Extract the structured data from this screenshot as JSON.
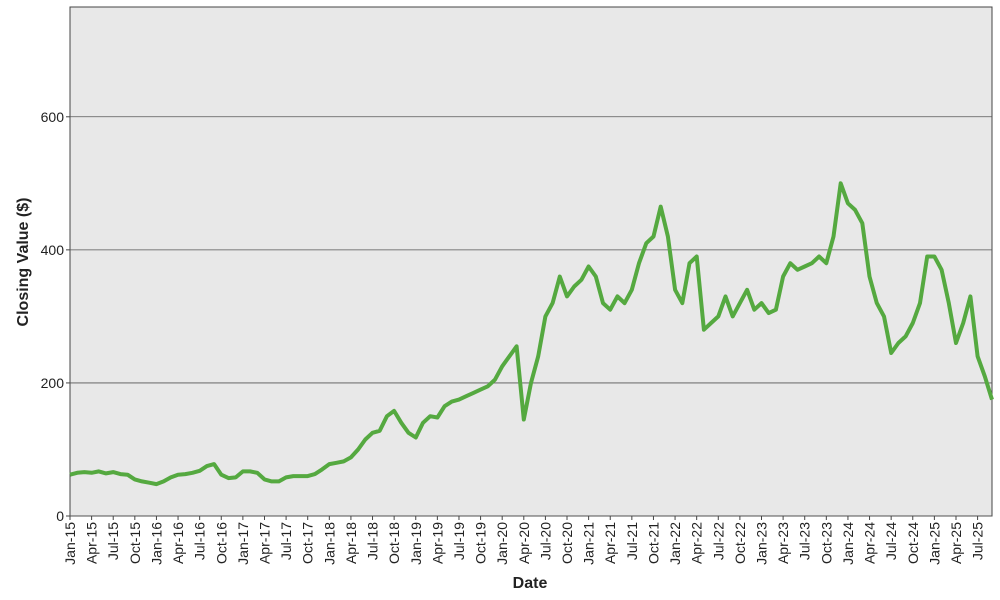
{
  "chart_data": {
    "type": "line",
    "x_label": "Date",
    "y_label": "Closing Value ($)",
    "categories": [
      "Jan-15",
      null,
      null,
      "Apr-15",
      null,
      null,
      "Jul-15",
      null,
      null,
      "Oct-15",
      null,
      null,
      "Jan-16",
      null,
      null,
      "Apr-16",
      null,
      null,
      "Jul-16",
      null,
      null,
      "Oct-16",
      null,
      null,
      "Jan-17",
      null,
      null,
      "Apr-17",
      null,
      null,
      "Jul-17",
      null,
      null,
      "Oct-17",
      null,
      null,
      "Jan-18",
      null,
      null,
      "Apr-18",
      null,
      null,
      "Jul-18",
      null,
      null,
      "Oct-18",
      null,
      null,
      "Jan-19",
      null,
      null,
      "Apr-19",
      null,
      null,
      "Jul-19",
      null,
      null,
      "Oct-19",
      null,
      null,
      "Jan-20",
      null,
      null,
      "Apr-20",
      null,
      null,
      "Jul-20",
      null,
      null,
      "Oct-20",
      null,
      null,
      "Jan-21",
      null,
      null,
      "Apr-21",
      null,
      null,
      "Jul-21",
      null,
      null,
      "Oct-21",
      null,
      null,
      "Jan-22",
      null,
      null,
      "Apr-22",
      null,
      null,
      "Jul-22",
      null,
      null,
      "Oct-22",
      null,
      null,
      "Jan-23",
      null,
      null,
      "Apr-23",
      null,
      null,
      "Jul-23",
      null,
      null,
      "Oct-23",
      null,
      null,
      "Jan-24",
      null,
      null,
      "Apr-24",
      null,
      null,
      "Jul-24",
      null,
      null,
      "Oct-24",
      null,
      null,
      "Jan-25",
      null,
      null,
      "Apr-25",
      null,
      null,
      "Jul-25",
      null,
      null
    ],
    "series": [
      {
        "color": "#55a940",
        "values": [
          62,
          65,
          66,
          65,
          67,
          64,
          66,
          63,
          62,
          55,
          52,
          50,
          48,
          52,
          58,
          62,
          63,
          65,
          68,
          75,
          78,
          62,
          57,
          58,
          67,
          67,
          65,
          55,
          52,
          52,
          58,
          60,
          60,
          60,
          63,
          70,
          78,
          80,
          82,
          88,
          100,
          115,
          125,
          128,
          150,
          158,
          140,
          125,
          118,
          140,
          150,
          148,
          165,
          172,
          175,
          180,
          185,
          190,
          195,
          205,
          225,
          240,
          255,
          145,
          200,
          240,
          300,
          320,
          360,
          330,
          345,
          355,
          375,
          360,
          320,
          310,
          330,
          320,
          340,
          380,
          410,
          420,
          465,
          420,
          340,
          320,
          380,
          390,
          280,
          290,
          300,
          330,
          300,
          320,
          340,
          310,
          320,
          305,
          310,
          360,
          380,
          370,
          375,
          380,
          390,
          380,
          420,
          500,
          470,
          460,
          440,
          360,
          320,
          300,
          245,
          260,
          270,
          290,
          320,
          390,
          390,
          370,
          320,
          260,
          290,
          330,
          240,
          210,
          175
        ]
      }
    ],
    "ylim": [
      0,
      765
    ],
    "yticks": [
      0,
      200,
      400,
      600
    ],
    "grid": true
  }
}
